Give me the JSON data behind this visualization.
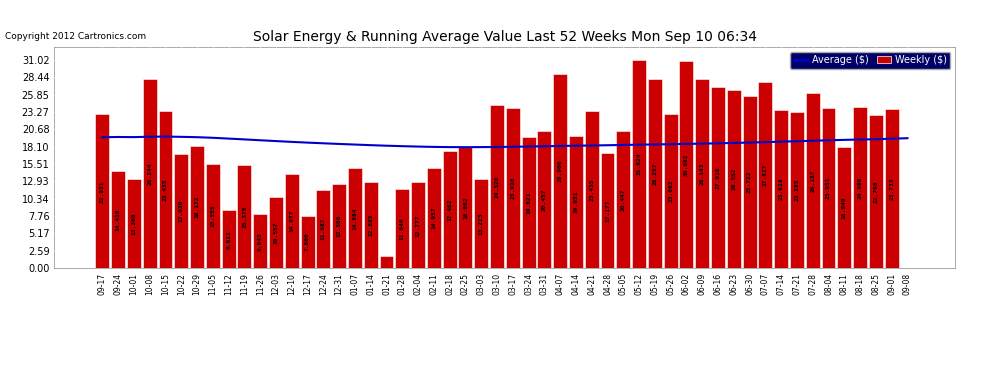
{
  "title": "Solar Energy & Running Average Value Last 52 Weeks Mon Sep 10 06:34",
  "copyright": "Copyright 2012 Cartronics.com",
  "bar_color": "#cc0000",
  "bar_edge_color": "#ffffff",
  "avg_line_color": "#0000cc",
  "background_color": "#ffffff",
  "plot_bg_color": "#ffffff",
  "grid_color": "#c0c0c0",
  "legend_labels": [
    "Average ($)",
    "Weekly ($)"
  ],
  "legend_bg_color": "#000066",
  "categories": [
    "09-17",
    "09-24",
    "10-01",
    "10-08",
    "10-15",
    "10-22",
    "10-29",
    "11-05",
    "11-12",
    "11-19",
    "11-26",
    "12-03",
    "12-10",
    "12-17",
    "12-24",
    "12-31",
    "01-07",
    "01-14",
    "01-21",
    "01-28",
    "02-04",
    "02-11",
    "02-18",
    "02-25",
    "03-03",
    "03-10",
    "03-17",
    "03-24",
    "03-31",
    "04-07",
    "04-14",
    "04-21",
    "04-28",
    "05-05",
    "05-12",
    "05-19",
    "05-26",
    "06-02",
    "06-09",
    "06-16",
    "06-23",
    "06-30",
    "07-07",
    "07-14",
    "07-21",
    "07-28",
    "08-04",
    "08-11",
    "08-18",
    "08-25",
    "09-01",
    "09-08"
  ],
  "weekly_values": [
    22.931,
    14.418,
    13.268,
    28.244,
    23.435,
    17.03,
    18.172,
    15.555,
    8.611,
    15.378,
    8.043,
    10.557,
    14.077,
    7.806,
    11.687,
    12.56,
    14.864,
    12.885,
    1.802,
    11.84,
    12.777,
    14.957,
    17.402,
    18.002,
    13.223,
    24.32,
    23.91,
    19.621,
    20.457,
    28.906,
    19.651,
    23.435,
    17.177,
    20.447,
    31.024,
    28.257,
    23.062,
    30.882,
    28.143,
    27.018,
    26.552,
    25.722,
    27.817,
    23.618,
    23.285,
    26.157,
    23.951,
    18.049,
    24.098,
    22.768,
    23.733,
    0.0
  ],
  "avg_values": [
    19.52,
    19.56,
    19.54,
    19.6,
    19.62,
    19.58,
    19.53,
    19.44,
    19.32,
    19.2,
    19.07,
    18.95,
    18.83,
    18.72,
    18.62,
    18.52,
    18.43,
    18.34,
    18.26,
    18.19,
    18.13,
    18.08,
    18.05,
    18.04,
    18.05,
    18.07,
    18.1,
    18.14,
    18.18,
    18.22,
    18.26,
    18.29,
    18.33,
    18.37,
    18.41,
    18.45,
    18.49,
    18.53,
    18.57,
    18.62,
    18.67,
    18.73,
    18.79,
    18.86,
    18.93,
    19.0,
    19.07,
    19.13,
    19.18,
    19.23,
    19.3,
    19.38
  ],
  "ytick_values": [
    0.0,
    2.59,
    5.17,
    7.76,
    10.34,
    12.93,
    15.51,
    18.1,
    20.68,
    23.27,
    25.85,
    28.44,
    31.02
  ],
  "ymax": 33.0,
  "title_fontsize": 10,
  "copyright_fontsize": 6.5,
  "bar_label_fontsize": 4.5,
  "tick_fontsize": 5.5,
  "ytick_fontsize": 7.0
}
